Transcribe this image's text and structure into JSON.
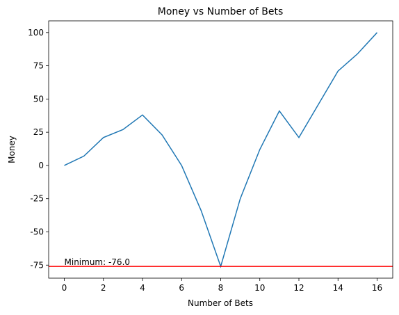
{
  "chart_data": {
    "type": "line",
    "title": "Money vs Number of Bets",
    "x_label": "Number of Bets",
    "y_label": "Money",
    "x": [
      0,
      1,
      2,
      3,
      4,
      5,
      6,
      7,
      8,
      9,
      10,
      11,
      12,
      13,
      14,
      15,
      16
    ],
    "series": [
      {
        "color": "#1f77b4",
        "values": [
          0,
          7,
          21,
          27,
          38,
          23,
          0,
          -34,
          -76,
          -25,
          12,
          41,
          21,
          46,
          71,
          84,
          100
        ]
      }
    ],
    "xlim": [
      -0.8,
      16.8
    ],
    "xticks": [
      0,
      2,
      4,
      6,
      8,
      10,
      12,
      14,
      16
    ],
    "ylim": [
      -84.8,
      108.8
    ],
    "yticks": [
      -75,
      -50,
      -25,
      0,
      25,
      50,
      75,
      100
    ],
    "hline": {
      "value": -76,
      "color": "#ff0000"
    },
    "annotation": "Minimum: -76.0"
  }
}
